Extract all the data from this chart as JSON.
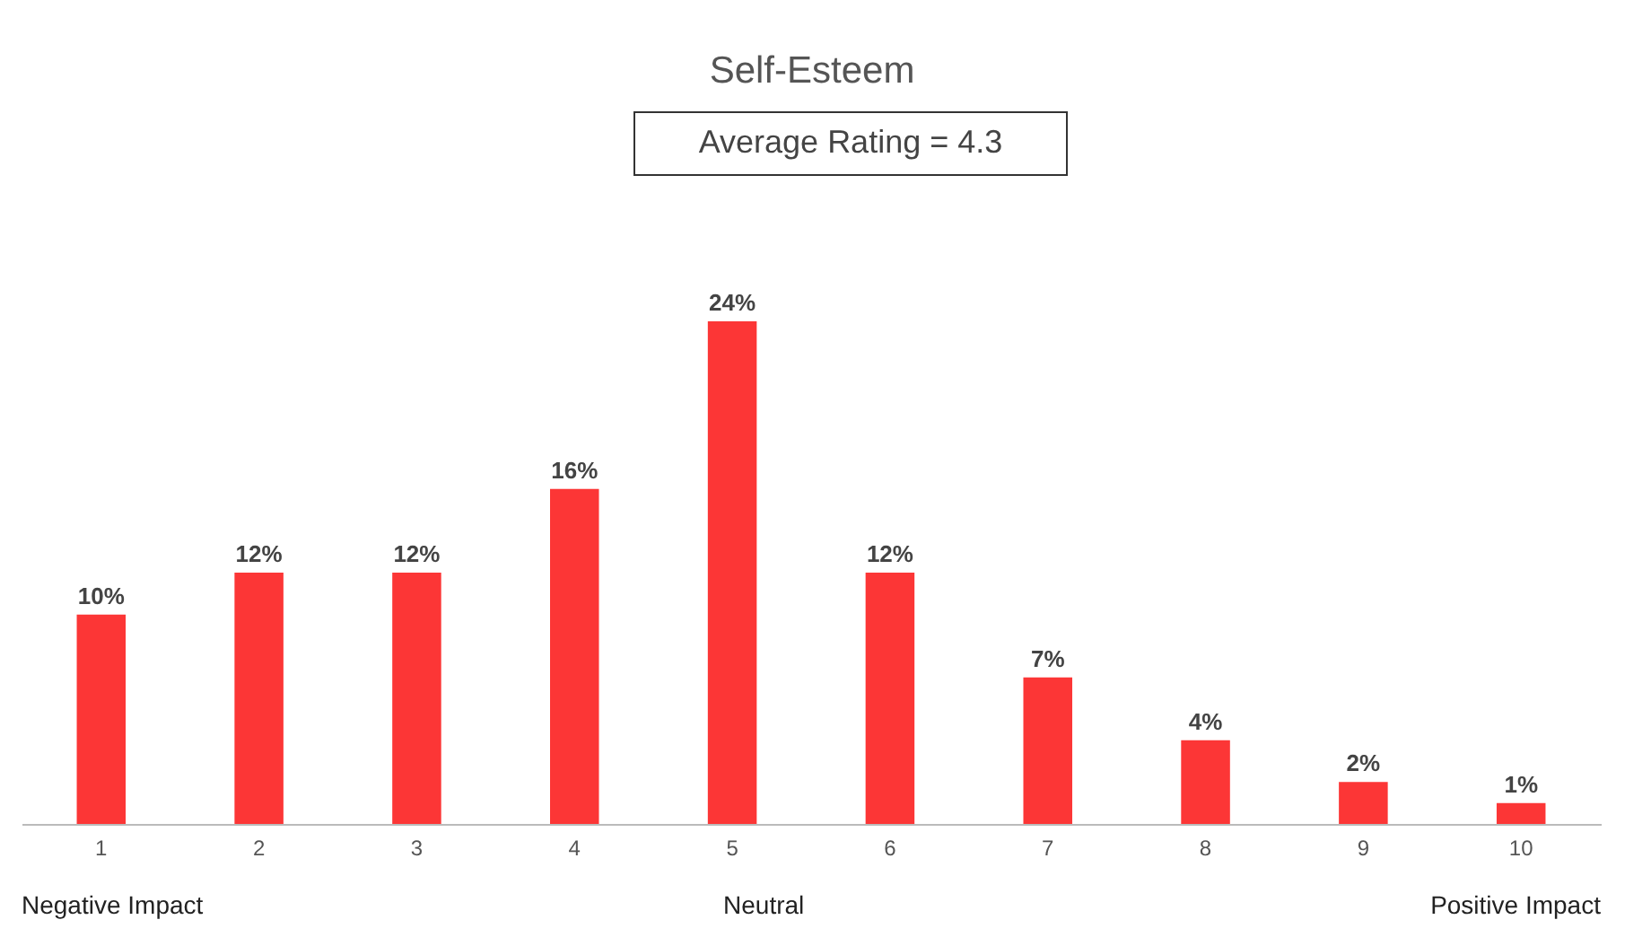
{
  "chart_data": {
    "type": "bar",
    "title": "Self-Esteem",
    "categories": [
      "1",
      "2",
      "3",
      "4",
      "5",
      "6",
      "7",
      "8",
      "9",
      "10"
    ],
    "values": [
      10,
      12,
      12,
      16,
      24,
      12,
      7,
      4,
      2,
      1
    ],
    "value_labels": [
      "10%",
      "12%",
      "12%",
      "16%",
      "24%",
      "12%",
      "7%",
      "4%",
      "2%",
      "1%"
    ],
    "color": "#fc3636",
    "ylim": [
      0,
      24
    ],
    "grid": false,
    "annotations": [
      "Average Rating = 4.3",
      "Negative Impact",
      "Neutral",
      "Positive Impact"
    ]
  }
}
